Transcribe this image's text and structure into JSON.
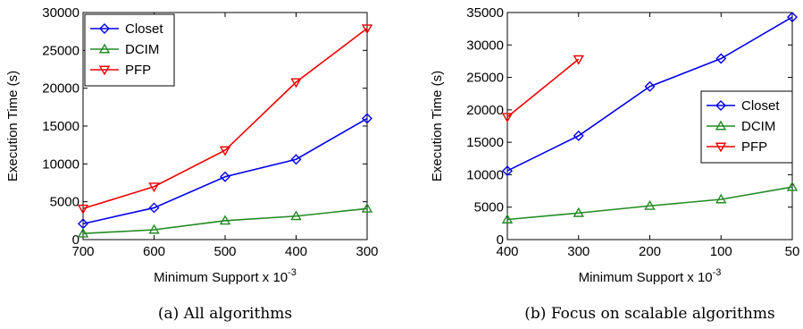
{
  "chart_data": [
    {
      "type": "line",
      "caption": "(a) All algorithms",
      "xlabel": "Minimum Support x 10",
      "xlabel_exponent": "-3",
      "ylabel": "Execution Time (s)",
      "x": [
        700,
        600,
        500,
        400,
        300
      ],
      "x_reversed": true,
      "xlim": [
        700,
        300
      ],
      "ylim": [
        0,
        30000
      ],
      "yticks": [
        0,
        5000,
        10000,
        15000,
        20000,
        25000,
        30000
      ],
      "legend_placement": "top-left",
      "grid": false,
      "series": [
        {
          "name": "Closet",
          "color": "#0000ee",
          "marker": "diamond",
          "values": [
            2100,
            4200,
            8300,
            10600,
            16000
          ]
        },
        {
          "name": "DCIM",
          "color": "#228b22",
          "marker": "triangle-up",
          "values": [
            800,
            1300,
            2500,
            3100,
            4100
          ]
        },
        {
          "name": "PFP",
          "color": "#ee0000",
          "marker": "triangle-down",
          "values": [
            4100,
            7000,
            11800,
            20800,
            27900
          ]
        }
      ]
    },
    {
      "type": "line",
      "caption": "(b) Focus on scalable algorithms",
      "xlabel": "Minimum Support x 10",
      "xlabel_exponent": "-3",
      "ylabel": "Execution Time (s)",
      "x": [
        400,
        300,
        200,
        100,
        50
      ],
      "xticks": [
        400,
        300,
        200,
        100,
        50
      ],
      "x_reversed": true,
      "x_categorical_spacing": true,
      "ylim": [
        0,
        35000
      ],
      "yticks": [
        0,
        5000,
        10000,
        15000,
        20000,
        25000,
        30000,
        35000
      ],
      "legend_placement": "center-right",
      "grid": false,
      "series": [
        {
          "name": "Closet",
          "color": "#0000ee",
          "marker": "diamond",
          "values": [
            10600,
            16000,
            23600,
            27900,
            34300
          ]
        },
        {
          "name": "DCIM",
          "color": "#228b22",
          "marker": "triangle-up",
          "values": [
            3100,
            4100,
            5200,
            6200,
            8100
          ]
        },
        {
          "name": "PFP",
          "color": "#ee0000",
          "marker": "triangle-down",
          "values": [
            18900,
            27800,
            null,
            null,
            null
          ]
        }
      ]
    }
  ]
}
